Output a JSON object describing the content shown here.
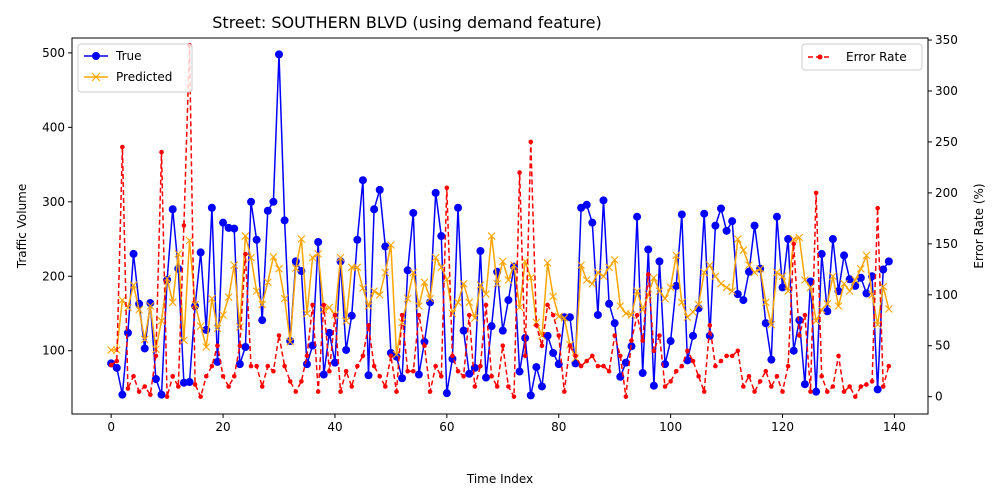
{
  "chart_data": {
    "type": "line",
    "title": "Street: SOUTHERN BLVD (using demand feature)",
    "xlabel": "Time Index",
    "ylabel": "Traffic Volume",
    "y2label": "Error Rate (%)",
    "xlim": [
      -7,
      146
    ],
    "ylim": [
      15,
      520
    ],
    "y2lim": [
      -17,
      352
    ],
    "xticks": [
      0,
      20,
      40,
      60,
      80,
      100,
      120,
      140
    ],
    "yticks": [
      100,
      200,
      300,
      400,
      500
    ],
    "y2ticks": [
      0,
      50,
      100,
      150,
      200,
      250,
      300,
      350
    ],
    "grid": false,
    "legend_left": "top-left",
    "legend_right": "top-right",
    "x": [
      0,
      1,
      2,
      3,
      4,
      5,
      6,
      7,
      8,
      9,
      10,
      11,
      12,
      13,
      14,
      15,
      16,
      17,
      18,
      19,
      20,
      21,
      22,
      23,
      24,
      25,
      26,
      27,
      28,
      29,
      30,
      31,
      32,
      33,
      34,
      35,
      36,
      37,
      38,
      39,
      40,
      41,
      42,
      43,
      44,
      45,
      46,
      47,
      48,
      49,
      50,
      51,
      52,
      53,
      54,
      55,
      56,
      57,
      58,
      59,
      60,
      61,
      62,
      63,
      64,
      65,
      66,
      67,
      68,
      69,
      70,
      71,
      72,
      73,
      74,
      75,
      76,
      77,
      78,
      79,
      80,
      81,
      82,
      83,
      84,
      85,
      86,
      87,
      88,
      89,
      90,
      91,
      92,
      93,
      94,
      95,
      96,
      97,
      98,
      99,
      100,
      101,
      102,
      103,
      104,
      105,
      106,
      107,
      108,
      109,
      110,
      111,
      112,
      113,
      114,
      115,
      116,
      117,
      118,
      119,
      120,
      121,
      122,
      123,
      124,
      125,
      126,
      127,
      128,
      129,
      130,
      131,
      132,
      133,
      134,
      135,
      136,
      137,
      138,
      139
    ],
    "series": [
      {
        "name": "True",
        "axis": "left",
        "color": "#0000ff",
        "marker": "circle",
        "values": [
          83,
          77,
          41,
          124,
          230,
          163,
          103,
          164,
          62,
          41,
          195,
          290,
          210,
          57,
          58,
          160,
          232,
          128,
          292,
          85,
          272,
          265,
          264,
          82,
          105,
          300,
          249,
          141,
          288,
          300,
          498,
          275,
          113,
          220,
          207,
          82,
          107,
          246,
          68,
          124,
          84,
          220,
          101,
          147,
          249,
          329,
          67,
          290,
          316,
          240,
          97,
          92,
          63,
          208,
          285,
          68,
          112,
          165,
          312,
          254,
          43,
          89,
          292,
          127,
          69,
          77,
          234,
          64,
          133,
          206,
          127,
          168,
          213,
          72,
          117,
          40,
          78,
          52,
          120,
          97,
          82,
          145,
          145,
          83,
          292,
          296,
          272,
          148,
          302,
          163,
          137,
          65,
          84,
          106,
          280,
          70,
          236,
          53,
          220,
          82,
          113,
          187,
          283,
          87,
          120,
          157,
          284,
          120,
          268,
          291,
          261,
          274,
          176,
          168,
          206,
          268,
          210,
          137,
          88,
          280,
          185,
          250,
          100,
          141,
          55,
          193,
          45,
          230,
          153,
          250,
          180,
          228,
          196,
          187,
          198,
          177,
          200,
          48,
          209,
          220
        ]
      },
      {
        "name": "Predicted",
        "axis": "left",
        "color": "#ffa500",
        "marker": "x",
        "values": [
          101,
          101,
          168,
          158,
          188,
          155,
          115,
          160,
          102,
          140,
          197,
          165,
          230,
          114,
          248,
          162,
          133,
          105,
          170,
          130,
          148,
          172,
          215,
          132,
          254,
          225,
          180,
          162,
          192,
          226,
          210,
          170,
          112,
          211,
          250,
          150,
          225,
          230,
          155,
          158,
          148,
          225,
          140,
          212,
          212,
          184,
          160,
          180,
          175,
          205,
          242,
          95,
          138,
          170,
          205,
          160,
          192,
          170,
          225,
          212,
          196,
          150,
          165,
          190,
          165,
          144,
          188,
          176,
          254,
          190,
          220,
          195,
          215,
          158,
          220,
          198,
          138,
          120,
          218,
          173,
          146,
          144,
          108,
          90,
          215,
          195,
          190,
          205,
          200,
          212,
          222,
          160,
          150,
          148,
          180,
          155,
          175,
          198,
          180,
          170,
          185,
          228,
          165,
          145,
          152,
          162,
          205,
          215,
          200,
          190,
          185,
          180,
          250,
          235,
          215,
          205,
          210,
          165,
          135,
          205,
          200,
          180,
          250,
          252,
          195,
          185,
          140,
          155,
          163,
          200,
          160,
          190,
          180,
          195,
          210,
          228,
          175,
          135,
          186,
          156
        ]
      },
      {
        "name": "Error Rate",
        "axis": "right",
        "color": "#ff0000",
        "marker": "dot",
        "values": [
          31,
          35,
          245,
          8,
          20,
          5,
          10,
          2,
          40,
          240,
          0,
          20,
          10,
          168,
          345,
          12,
          0,
          20,
          30,
          50,
          20,
          10,
          20,
          50,
          140,
          30,
          30,
          10,
          30,
          25,
          60,
          30,
          15,
          5,
          15,
          40,
          90,
          5,
          90,
          25,
          80,
          5,
          25,
          10,
          30,
          40,
          70,
          30,
          20,
          10,
          40,
          5,
          80,
          25,
          25,
          80,
          50,
          5,
          30,
          20,
          205,
          40,
          25,
          20,
          80,
          10,
          30,
          90,
          20,
          10,
          50,
          10,
          0,
          220,
          40,
          250,
          70,
          50,
          90,
          80,
          60,
          5,
          50,
          40,
          30,
          35,
          40,
          30,
          30,
          25,
          60,
          40,
          0,
          55,
          80,
          55,
          120,
          45,
          60,
          10,
          15,
          25,
          30,
          45,
          35,
          20,
          5,
          70,
          30,
          35,
          40,
          40,
          45,
          10,
          20,
          5,
          15,
          25,
          10,
          20,
          5,
          30,
          150,
          60,
          80,
          5,
          200,
          20,
          5,
          10,
          40,
          5,
          10,
          0,
          10,
          12,
          15,
          185,
          10,
          30
        ]
      }
    ]
  }
}
